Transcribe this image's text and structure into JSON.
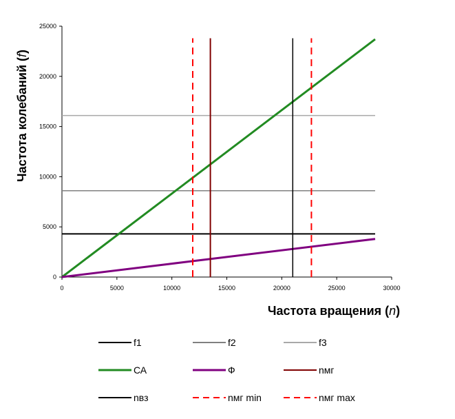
{
  "chart_data": {
    "type": "line",
    "title": "",
    "xlabel": "Частота вращения (n)",
    "xlabel_main": "Частота вращения (",
    "xlabel_var": "n",
    "xlabel_close": ")",
    "ylabel": "Частота колебаний (f)",
    "ylabel_main": "Частота колебаний (",
    "ylabel_var": "f",
    "ylabel_close": ")",
    "xlim": [
      0,
      30000
    ],
    "ylim": [
      0,
      25000
    ],
    "x_ticks": [
      0,
      5000,
      10000,
      15000,
      20000,
      25000,
      30000
    ],
    "y_ticks": [
      0,
      5000,
      10000,
      15000,
      20000,
      25000
    ],
    "grid": false,
    "legend_position": "bottom",
    "series": [
      {
        "name": "f1",
        "color": "#000000",
        "dash": "solid",
        "width": 2,
        "points": [
          [
            0,
            4300
          ],
          [
            28500,
            4300
          ]
        ]
      },
      {
        "name": "f2",
        "color": "#808080",
        "dash": "solid",
        "width": 1.5,
        "points": [
          [
            0,
            8600
          ],
          [
            28500,
            8600
          ]
        ]
      },
      {
        "name": "f3",
        "color": "#a8a8a8",
        "dash": "solid",
        "width": 1.5,
        "points": [
          [
            0,
            16100
          ],
          [
            28500,
            16100
          ]
        ]
      },
      {
        "name": "СА",
        "color": "#228b22",
        "dash": "solid",
        "width": 3,
        "points": [
          [
            0,
            0
          ],
          [
            28500,
            23700
          ]
        ]
      },
      {
        "name": "Ф",
        "color": "#800080",
        "dash": "solid",
        "width": 3,
        "points": [
          [
            0,
            0
          ],
          [
            28500,
            3800
          ]
        ]
      },
      {
        "name": "nмг",
        "color": "#800000",
        "dash": "solid",
        "width": 2,
        "points": [
          [
            13500,
            0
          ],
          [
            13500,
            23800
          ]
        ]
      },
      {
        "name": "nвз",
        "color": "#000000",
        "dash": "solid",
        "width": 1.5,
        "points": [
          [
            21000,
            0
          ],
          [
            21000,
            23800
          ]
        ]
      },
      {
        "name": "nмг min",
        "color": "#ff0000",
        "dash": "dashed",
        "width": 2,
        "points": [
          [
            11900,
            0
          ],
          [
            11900,
            23800
          ]
        ]
      },
      {
        "name": "nмг max",
        "color": "#ff0000",
        "dash": "dashed",
        "width": 2,
        "points": [
          [
            22700,
            0
          ],
          [
            22700,
            23800
          ]
        ]
      }
    ]
  }
}
